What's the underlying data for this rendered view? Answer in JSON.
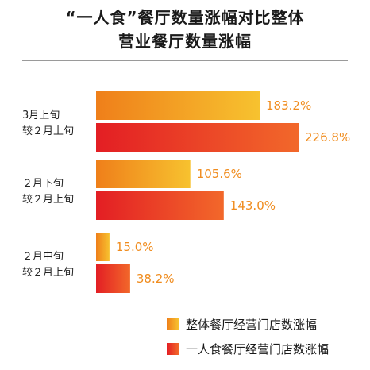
{
  "chart_data": {
    "type": "bar",
    "orientation": "horizontal",
    "title": [
      "“一人食”餐厅数量涨幅对比整体",
      "营业餐厅数量涨幅"
    ],
    "categories": [
      [
        "3月上旬",
        "较２月上旬"
      ],
      [
        "２月下旬",
        "较２月上旬"
      ],
      [
        "２月中旬",
        "较２月上旬"
      ]
    ],
    "series": [
      {
        "name": "整体餐厅经营门店数涨幅",
        "values": [
          183.2,
          105.6,
          15.0
        ],
        "labels": [
          "183.2%",
          "105.6%",
          "15.0%"
        ],
        "color_start": "#f7c22f",
        "color_end": "#ef7f1a",
        "label_color": "#f08c1e"
      },
      {
        "name": "一人食餐厅经营门店数涨幅",
        "values": [
          226.8,
          143.0,
          38.2
        ],
        "labels": [
          "226.8%",
          "143.0%",
          "38.2%"
        ],
        "color_start": "#f2682a",
        "color_end": "#e31e24",
        "label_color": "#f08c1e"
      }
    ],
    "xlim": [
      0,
      226.8
    ],
    "grid": false,
    "legend_position": "bottom-right"
  }
}
